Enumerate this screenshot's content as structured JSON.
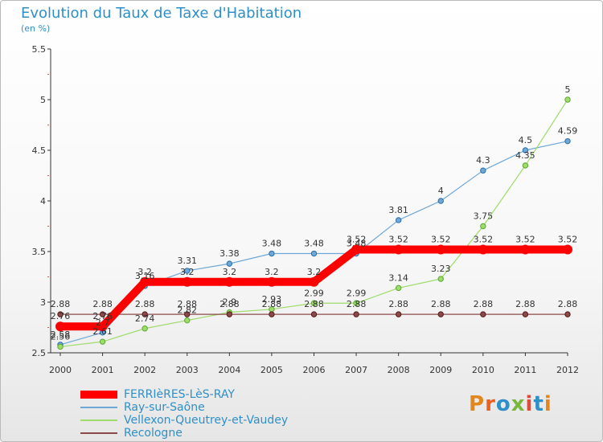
{
  "title": "Evolution du Taux de Taxe d'Habitation",
  "subtitle": "(en %)",
  "brand": "Proxiti",
  "colors": {
    "title": "#2f8fc7",
    "axis": "#333333",
    "brand_letters": [
      "#e2861e",
      "#ea5f22",
      "#2f8fc7",
      "#79b83d",
      "#e04b39",
      "#2f8fc7",
      "#e2861e"
    ]
  },
  "chart_data": {
    "type": "line",
    "title": "Evolution du Taux de Taxe d'Habitation",
    "ylabel": "(en %)",
    "xlabel": "",
    "x": [
      "2000",
      "2001",
      "2002",
      "2003",
      "2004",
      "2005",
      "2006",
      "2007",
      "2008",
      "2009",
      "2010",
      "2011",
      "2012"
    ],
    "ylim": [
      2.5,
      5.5
    ],
    "yticks": [
      "2.5",
      "3",
      "3.5",
      "4",
      "4.5",
      "5",
      "5.5"
    ],
    "grid": false,
    "legend_position": "bottom-left",
    "series": [
      {
        "name": "FERRIèRES-LèS-RAY",
        "color": "#ff0000",
        "values": [
          2.76,
          2.76,
          3.2,
          3.2,
          3.2,
          3.2,
          3.2,
          3.52,
          3.52,
          3.52,
          3.52,
          3.52,
          3.52
        ],
        "labels": [
          "2.76",
          "2.76",
          "3.2",
          "3.2",
          "3.2",
          "3.2",
          "3.2",
          "3.52",
          "3.52",
          "3.52",
          "3.52",
          "3.52",
          "3.52"
        ]
      },
      {
        "name": "Ray-sur-Saône",
        "color": "#6fa8d6",
        "values": [
          2.58,
          2.7,
          3.16,
          3.31,
          3.38,
          3.48,
          3.48,
          3.48,
          3.81,
          4.0,
          4.3,
          4.5,
          4.59
        ],
        "labels": [
          "2.58",
          "2.7",
          "3.16",
          "3.31",
          "3.38",
          "3.48",
          "3.48",
          "3.48",
          "3.81",
          "4",
          "4.3",
          "4.5",
          "4.59"
        ]
      },
      {
        "name": "Vellexon-Queutrey-et-Vaudey",
        "color": "#9fdc6b",
        "values": [
          2.56,
          2.61,
          2.74,
          2.82,
          2.9,
          2.93,
          2.99,
          2.99,
          3.14,
          3.23,
          3.75,
          4.35,
          5.0
        ],
        "labels": [
          "2.56",
          "2.61",
          "2.74",
          "2.82",
          "2.9",
          "2.93",
          "2.99",
          "2.99",
          "3.14",
          "3.23",
          "3.75",
          "4.35",
          "5"
        ]
      },
      {
        "name": "Recologne",
        "color": "#8b4a4a",
        "values": [
          2.88,
          2.88,
          2.88,
          2.88,
          2.88,
          2.88,
          2.88,
          2.88,
          2.88,
          2.88,
          2.88,
          2.88,
          2.88
        ],
        "labels": [
          "2.88",
          "2.88",
          "2.88",
          "2.88",
          "2.88",
          "2.88",
          "2.88",
          "2.88",
          "2.88",
          "2.88",
          "2.88",
          "2.88",
          "2.88"
        ]
      }
    ]
  }
}
